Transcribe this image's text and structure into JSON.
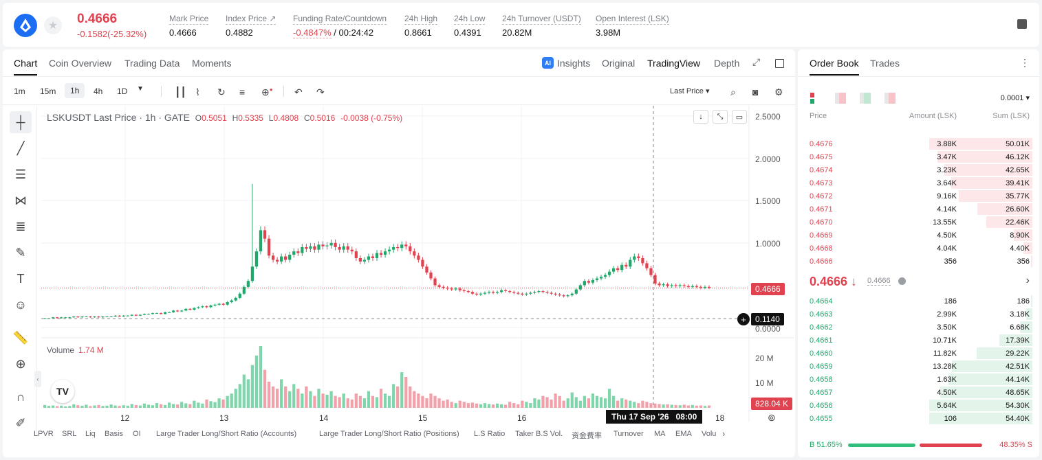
{
  "header": {
    "price": "0.4666",
    "change": "-0.1582(-25.32%)",
    "stats": [
      {
        "label": "Mark Price",
        "value": "0.4666"
      },
      {
        "label": "Index Price ↗",
        "value": "0.4882"
      },
      {
        "label": "Funding Rate/Countdown",
        "value_red": "-0.4847%",
        "value": " / 00:24:42"
      },
      {
        "label": "24h High",
        "value": "0.8661"
      },
      {
        "label": "24h Low",
        "value": "0.4391"
      },
      {
        "label": "24h Turnover (USDT)",
        "value": "20.82M"
      },
      {
        "label": "Open Interest (LSK)",
        "value": "3.98M"
      }
    ]
  },
  "chart_tabs": [
    "Chart",
    "Coin Overview",
    "Trading Data",
    "Moments"
  ],
  "view_tabs": [
    "Insights",
    "Original",
    "TradingView",
    "Depth"
  ],
  "timeframes": [
    "1m",
    "15m",
    "1h",
    "4h",
    "1D"
  ],
  "price_source": "Last Price ▾",
  "legend": {
    "symbol": "LSKUSDT Last Price · 1h · GATE",
    "o_lbl": "O",
    "o": "0.5051",
    "h_lbl": "H",
    "h": "0.5335",
    "l_lbl": "L",
    "l": "0.4808",
    "c_lbl": "C",
    "c": "0.5016",
    "chg": "-0.0038 (-0.75%)"
  },
  "volume_legend": {
    "label": "Volume",
    "value": "1.74 M"
  },
  "price_axis": [
    "2.5000",
    "2.0000",
    "1.5000",
    "1.0000",
    "0.0000"
  ],
  "volume_axis": [
    "20 M",
    "10 M"
  ],
  "x_axis": [
    "12",
    "13",
    "14",
    "15",
    "16",
    "18"
  ],
  "last_price_tag": "0.4666",
  "cursor_price_tag": "0.1140",
  "volume_tag": "828.04 K",
  "crosshair_time": "Thu 17 Sep '26   08:00",
  "indicators": [
    "LPVR",
    "SRL",
    "Liq",
    "Basis",
    "OI",
    "Large Trader Long/Short Ratio (Accounts)",
    "Large Trader Long/Short Ratio (Positions)",
    "L.S Ratio",
    "Taker B.S Vol.",
    "资金费率",
    "Turnover",
    "MA",
    "EMA",
    "Volu"
  ],
  "chart_data": {
    "type": "candlestick",
    "symbol": "LSKUSDT",
    "interval": "1h",
    "y_range": [
      0,
      2.5
    ],
    "x_ticks": [
      "12",
      "13",
      "14",
      "15",
      "16",
      "18"
    ],
    "closes": [
      0.11,
      0.11,
      0.12,
      0.11,
      0.12,
      0.12,
      0.12,
      0.13,
      0.12,
      0.13,
      0.13,
      0.12,
      0.13,
      0.12,
      0.13,
      0.13,
      0.13,
      0.14,
      0.13,
      0.14,
      0.14,
      0.15,
      0.14,
      0.15,
      0.16,
      0.16,
      0.17,
      0.17,
      0.16,
      0.18,
      0.18,
      0.2,
      0.19,
      0.2,
      0.22,
      0.21,
      0.23,
      0.24,
      0.25,
      0.24,
      0.26,
      0.27,
      0.28,
      0.27,
      0.3,
      0.32,
      0.35,
      0.4,
      0.48,
      0.55,
      0.72,
      0.9,
      1.15,
      1.05,
      0.85,
      0.8,
      0.78,
      0.84,
      0.8,
      0.86,
      0.9,
      0.88,
      0.95,
      0.93,
      0.96,
      0.92,
      0.98,
      0.96,
      0.97,
      1.0,
      0.95,
      0.92,
      0.96,
      0.92,
      0.9,
      0.82,
      0.78,
      0.8,
      0.84,
      0.82,
      0.88,
      0.86,
      0.9,
      0.92,
      0.95,
      0.94,
      0.98,
      0.96,
      0.9,
      0.85,
      0.8,
      0.72,
      0.65,
      0.58,
      0.5,
      0.48,
      0.47,
      0.46,
      0.45,
      0.46,
      0.44,
      0.43,
      0.42,
      0.4,
      0.39,
      0.4,
      0.41,
      0.42,
      0.41,
      0.42,
      0.44,
      0.43,
      0.42,
      0.41,
      0.4,
      0.39,
      0.4,
      0.41,
      0.42,
      0.43,
      0.42,
      0.41,
      0.4,
      0.39,
      0.38,
      0.37,
      0.38,
      0.4,
      0.45,
      0.5,
      0.55,
      0.53,
      0.56,
      0.58,
      0.6,
      0.62,
      0.66,
      0.7,
      0.68,
      0.74,
      0.72,
      0.8,
      0.84,
      0.82,
      0.76,
      0.7,
      0.62,
      0.52,
      0.5,
      0.51,
      0.49,
      0.5,
      0.49,
      0.5,
      0.49,
      0.48,
      0.49,
      0.48,
      0.47,
      0.48,
      0.47
    ],
    "volume_M": [
      1.2,
      0.8,
      1.0,
      0.7,
      0.9,
      0.6,
      0.8,
      1.5,
      1.1,
      0.9,
      1.3,
      0.7,
      1.0,
      1.2,
      0.8,
      0.9,
      1.4,
      1.0,
      0.8,
      1.1,
      0.9,
      1.6,
      1.2,
      1.0,
      1.8,
      1.3,
      1.1,
      2.0,
      1.5,
      1.2,
      2.2,
      1.6,
      1.4,
      2.5,
      1.9,
      1.6,
      3.0,
      2.2,
      1.8,
      3.5,
      2.8,
      2.4,
      4.0,
      3.5,
      5.0,
      6.0,
      8.0,
      10.0,
      14.0,
      12.0,
      18.0,
      22.0,
      26.0,
      16.0,
      11.0,
      9.0,
      8.0,
      12.0,
      9.0,
      7.0,
      10.0,
      8.0,
      6.0,
      9.0,
      7.0,
      5.0,
      8.0,
      6.0,
      5.5,
      7.0,
      5.0,
      4.5,
      6.0,
      4.0,
      3.5,
      6.0,
      5.0,
      4.0,
      7.0,
      5.0,
      4.5,
      8.0,
      6.0,
      5.0,
      10.0,
      9.0,
      15.0,
      13.0,
      9.0,
      7.0,
      6.0,
      5.0,
      4.0,
      6.0,
      5.0,
      4.0,
      3.0,
      3.5,
      2.5,
      2.0,
      3.0,
      2.5,
      2.0,
      2.2,
      1.8,
      1.5,
      2.0,
      1.6,
      1.4,
      1.8,
      1.5,
      1.3,
      2.5,
      2.0,
      1.5,
      3.0,
      2.5,
      2.0,
      4.0,
      3.5,
      5.0,
      4.5,
      3.5,
      6.0,
      5.0,
      3.0,
      4.0,
      6.5,
      4.5,
      3.0,
      5.0,
      4.0,
      6.0,
      5.0,
      4.5,
      4.0,
      8.0,
      5.0,
      3.0,
      4.0,
      3.5,
      3.0,
      2.5,
      2.0,
      3.0,
      2.5,
      2.0,
      1.8,
      1.6,
      1.4,
      1.5,
      1.3,
      1.2,
      1.1,
      1.3,
      1.0,
      1.2,
      0.9,
      1.0,
      0.8
    ]
  },
  "orderbook": {
    "tabs": [
      "Order Book",
      "Trades"
    ],
    "precision": "0.0001 ▾",
    "headers": [
      "Price",
      "Amount (LSK)",
      "Sum (LSK)"
    ],
    "asks": [
      {
        "price": "0.4676",
        "amount": "3.88K",
        "sum": "50.01K",
        "depth": 1.0
      },
      {
        "price": "0.4675",
        "amount": "3.47K",
        "sum": "46.12K",
        "depth": 0.922
      },
      {
        "price": "0.4674",
        "amount": "3.23K",
        "sum": "42.65K",
        "depth": 0.853
      },
      {
        "price": "0.4673",
        "amount": "3.64K",
        "sum": "39.41K",
        "depth": 0.788
      },
      {
        "price": "0.4672",
        "amount": "9.16K",
        "sum": "35.77K",
        "depth": 0.715
      },
      {
        "price": "0.4671",
        "amount": "4.14K",
        "sum": "26.60K",
        "depth": 0.532
      },
      {
        "price": "0.4670",
        "amount": "13.55K",
        "sum": "22.46K",
        "depth": 0.449
      },
      {
        "price": "0.4669",
        "amount": "4.50K",
        "sum": "8.90K",
        "depth": 0.178
      },
      {
        "price": "0.4668",
        "amount": "4.04K",
        "sum": "4.40K",
        "depth": 0.088
      },
      {
        "price": "0.4666",
        "amount": "356",
        "sum": "356",
        "depth": 0.007
      }
    ],
    "mid_price": "0.4666 ↓",
    "mid_mark": "0.4666",
    "bids": [
      {
        "price": "0.4664",
        "amount": "186",
        "sum": "186",
        "depth": 0.003
      },
      {
        "price": "0.4663",
        "amount": "2.99K",
        "sum": "3.18K",
        "depth": 0.059
      },
      {
        "price": "0.4662",
        "amount": "3.50K",
        "sum": "6.68K",
        "depth": 0.123
      },
      {
        "price": "0.4661",
        "amount": "10.71K",
        "sum": "17.39K",
        "depth": 0.32
      },
      {
        "price": "0.4660",
        "amount": "11.82K",
        "sum": "29.22K",
        "depth": 0.538
      },
      {
        "price": "0.4659",
        "amount": "13.28K",
        "sum": "42.51K",
        "depth": 0.783
      },
      {
        "price": "0.4658",
        "amount": "1.63K",
        "sum": "44.14K",
        "depth": 0.813
      },
      {
        "price": "0.4657",
        "amount": "4.50K",
        "sum": "48.65K",
        "depth": 0.896
      },
      {
        "price": "0.4656",
        "amount": "5.64K",
        "sum": "54.30K",
        "depth": 1.0
      },
      {
        "price": "0.4655",
        "amount": "106",
        "sum": "54.40K",
        "depth": 1.0
      }
    ],
    "buy_ratio": "B 51.65%",
    "sell_ratio": "48.35% S",
    "buy_pct": 51.65
  },
  "colors": {
    "up": "#1fa86a",
    "down": "#e0424f",
    "up_fill": "#7fd6ab",
    "down_fill": "#f2a0a9"
  }
}
